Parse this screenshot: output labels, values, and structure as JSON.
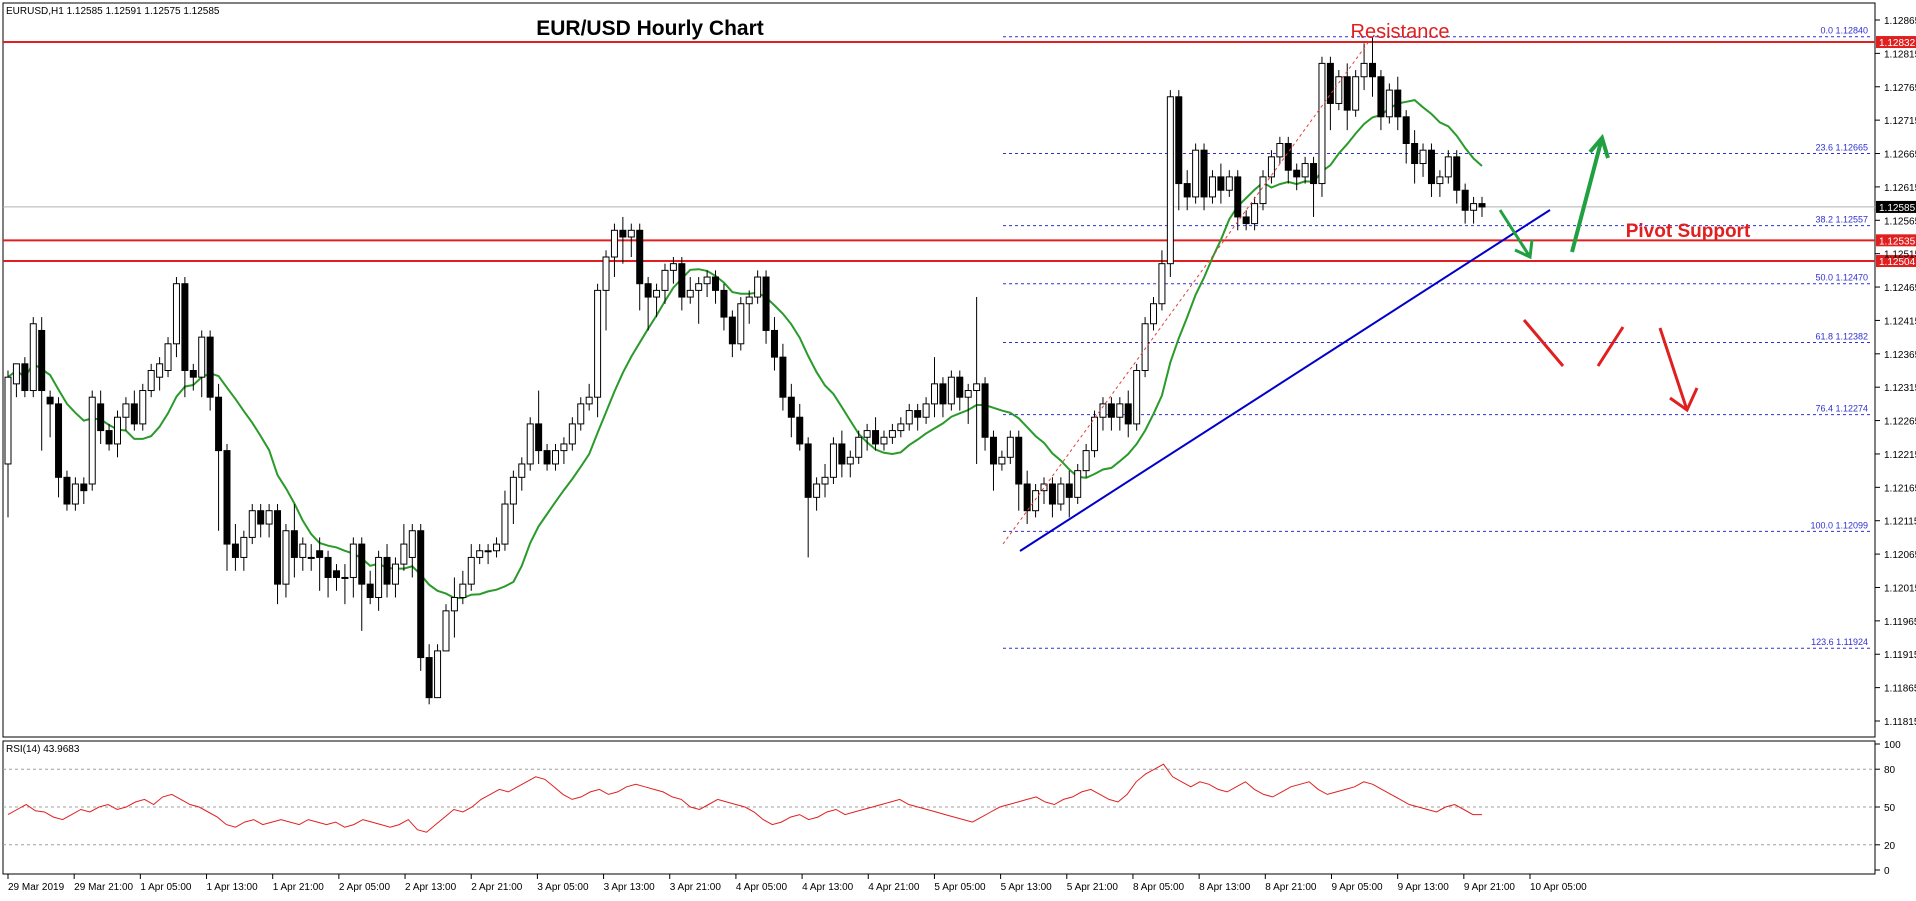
{
  "header": {
    "symbol_line": "EURUSD,H1  1.12585 1.12591 1.12575 1.12585"
  },
  "chart_data": {
    "type": "candlestick",
    "title": "EUR/USD Hourly Chart",
    "ylim": [
      1.1179,
      1.1289
    ],
    "y_ticks": [
      "1.12865",
      "1.12815",
      "1.12765",
      "1.12715",
      "1.12665",
      "1.12615",
      "1.12565",
      "1.12515",
      "1.12465",
      "1.12415",
      "1.12365",
      "1.12315",
      "1.12265",
      "1.12215",
      "1.12165",
      "1.12115",
      "1.12065",
      "1.12015",
      "1.11965",
      "1.11915",
      "1.11865",
      "1.11815"
    ],
    "x_ticks": [
      "29 Mar 2019",
      "29 Mar 21:00",
      "1 Apr 05:00",
      "1 Apr 13:00",
      "1 Apr 21:00",
      "2 Apr 05:00",
      "2 Apr 13:00",
      "2 Apr 21:00",
      "3 Apr 05:00",
      "3 Apr 13:00",
      "3 Apr 21:00",
      "4 Apr 05:00",
      "4 Apr 13:00",
      "4 Apr 21:00",
      "5 Apr 05:00",
      "5 Apr 13:00",
      "5 Apr 21:00",
      "8 Apr 05:00",
      "8 Apr 13:00",
      "8 Apr 21:00",
      "9 Apr 05:00",
      "9 Apr 13:00",
      "9 Apr 21:00",
      "10 Apr 05:00"
    ],
    "current_price": "1.12585",
    "price_labels": [
      "1.12832",
      "1.12535",
      "1.12504"
    ],
    "annotations": {
      "resistance": "Resistance",
      "pivot_support": "Pivot Support"
    },
    "fibonacci": [
      {
        "label": "0.0 1.12840",
        "price": 1.1284
      },
      {
        "label": "23.6 1.12665",
        "price": 1.12665
      },
      {
        "label": "38.2 1.12557",
        "price": 1.12557
      },
      {
        "label": "50.0 1.12470",
        "price": 1.1247
      },
      {
        "label": "61.8 1.12382",
        "price": 1.12382
      },
      {
        "label": "76.4 1.12274",
        "price": 1.12274
      },
      {
        "label": "100.0 1.12099",
        "price": 1.12099
      },
      {
        "label": "123.6 1.11924",
        "price": 1.11924
      }
    ],
    "horizontal_lines": [
      1.12832,
      1.12535,
      1.12504
    ],
    "candles": [
      [
        1.122,
        1.1234,
        1.1233,
        1.1212
      ],
      [
        1.1232,
        1.1235,
        1.1235,
        1.123
      ],
      [
        1.1235,
        1.1236,
        1.1231,
        1.123
      ],
      [
        1.1231,
        1.1242,
        1.1241,
        1.123
      ],
      [
        1.124,
        1.1242,
        1.1231,
        1.1222
      ],
      [
        1.123,
        1.1231,
        1.1229,
        1.1224
      ],
      [
        1.1229,
        1.123,
        1.1218,
        1.1215
      ],
      [
        1.1218,
        1.1219,
        1.1214,
        1.1213
      ],
      [
        1.1214,
        1.1218,
        1.1217,
        1.1213
      ],
      [
        1.1217,
        1.1218,
        1.1216,
        1.1214
      ],
      [
        1.1217,
        1.1231,
        1.123,
        1.1216
      ],
      [
        1.1229,
        1.1231,
        1.1225,
        1.1223
      ],
      [
        1.1225,
        1.1226,
        1.1223,
        1.1222
      ],
      [
        1.1223,
        1.1228,
        1.1227,
        1.1221
      ],
      [
        1.1227,
        1.123,
        1.1229,
        1.1225
      ],
      [
        1.1229,
        1.1231,
        1.1226,
        1.1225
      ],
      [
        1.1226,
        1.1232,
        1.1231,
        1.1225
      ],
      [
        1.1231,
        1.1235,
        1.1234,
        1.123
      ],
      [
        1.1233,
        1.1236,
        1.1235,
        1.1231
      ],
      [
        1.1234,
        1.1239,
        1.1238,
        1.1233
      ],
      [
        1.1238,
        1.1248,
        1.1247,
        1.1236
      ],
      [
        1.1247,
        1.1248,
        1.1234,
        1.123
      ],
      [
        1.1234,
        1.1235,
        1.1233,
        1.1231
      ],
      [
        1.1233,
        1.124,
        1.1239,
        1.123
      ],
      [
        1.1239,
        1.124,
        1.123,
        1.1228
      ],
      [
        1.123,
        1.1232,
        1.1222,
        1.121
      ],
      [
        1.1222,
        1.1223,
        1.1208,
        1.1204
      ],
      [
        1.1208,
        1.1211,
        1.1206,
        1.1204
      ],
      [
        1.1206,
        1.121,
        1.1209,
        1.1204
      ],
      [
        1.1209,
        1.1214,
        1.1213,
        1.1208
      ],
      [
        1.1213,
        1.1214,
        1.1211,
        1.1209
      ],
      [
        1.1211,
        1.1214,
        1.1213,
        1.1209
      ],
      [
        1.1213,
        1.1214,
        1.1202,
        1.1199
      ],
      [
        1.1202,
        1.1211,
        1.121,
        1.12
      ],
      [
        1.121,
        1.1214,
        1.1206,
        1.1203
      ],
      [
        1.1206,
        1.1209,
        1.1208,
        1.1204
      ],
      [
        1.1206,
        1.1208,
        1.1206,
        1.1204
      ],
      [
        1.1207,
        1.1209,
        1.1206,
        1.1201
      ],
      [
        1.1206,
        1.1207,
        1.1203,
        1.12
      ],
      [
        1.1204,
        1.1205,
        1.1203,
        1.1201
      ],
      [
        1.1203,
        1.1205,
        1.1203,
        1.1199
      ],
      [
        1.1203,
        1.1209,
        1.1208,
        1.12
      ],
      [
        1.1208,
        1.1209,
        1.1202,
        1.1195
      ],
      [
        1.1202,
        1.1204,
        1.12,
        1.1199
      ],
      [
        1.12,
        1.1207,
        1.1206,
        1.1198
      ],
      [
        1.1206,
        1.1208,
        1.1202,
        1.12
      ],
      [
        1.1202,
        1.1206,
        1.1205,
        1.12
      ],
      [
        1.1205,
        1.1211,
        1.1208,
        1.1204
      ],
      [
        1.1206,
        1.1211,
        1.121,
        1.1203
      ],
      [
        1.121,
        1.1211,
        1.1191,
        1.1189
      ],
      [
        1.1191,
        1.1193,
        1.1185,
        1.1184
      ],
      [
        1.1185,
        1.1193,
        1.1192,
        1.1185
      ],
      [
        1.1192,
        1.1199,
        1.1198,
        1.1192
      ],
      [
        1.1198,
        1.1203,
        1.12,
        1.1194
      ],
      [
        1.12,
        1.1204,
        1.1202,
        1.1199
      ],
      [
        1.1202,
        1.1208,
        1.1206,
        1.1201
      ],
      [
        1.1206,
        1.1208,
        1.1207,
        1.1205
      ],
      [
        1.1207,
        1.1208,
        1.1207,
        1.1205
      ],
      [
        1.1207,
        1.1209,
        1.1208,
        1.1206
      ],
      [
        1.1208,
        1.1216,
        1.1214,
        1.1207
      ],
      [
        1.1214,
        1.1219,
        1.1218,
        1.1211
      ],
      [
        1.1218,
        1.1221,
        1.122,
        1.1216
      ],
      [
        1.122,
        1.1227,
        1.1226,
        1.1219
      ],
      [
        1.1226,
        1.1231,
        1.1222,
        1.122
      ],
      [
        1.1222,
        1.1223,
        1.122,
        1.1219
      ],
      [
        1.122,
        1.1223,
        1.1222,
        1.1219
      ],
      [
        1.1222,
        1.1224,
        1.1223,
        1.122
      ],
      [
        1.1223,
        1.1227,
        1.1226,
        1.1222
      ],
      [
        1.1226,
        1.123,
        1.1229,
        1.1225
      ],
      [
        1.1229,
        1.1232,
        1.123,
        1.1228
      ],
      [
        1.123,
        1.1247,
        1.1246,
        1.1227
      ],
      [
        1.1246,
        1.1252,
        1.1251,
        1.124
      ],
      [
        1.1251,
        1.1256,
        1.1255,
        1.1248
      ],
      [
        1.1255,
        1.1257,
        1.1254,
        1.125
      ],
      [
        1.1254,
        1.1256,
        1.1255,
        1.1251
      ],
      [
        1.1255,
        1.1256,
        1.1247,
        1.1243
      ],
      [
        1.1247,
        1.1248,
        1.1245,
        1.124
      ],
      [
        1.1245,
        1.1247,
        1.1246,
        1.1242
      ],
      [
        1.1246,
        1.125,
        1.1249,
        1.1244
      ],
      [
        1.1249,
        1.1251,
        1.125,
        1.1247
      ],
      [
        1.125,
        1.1251,
        1.1245,
        1.1243
      ],
      [
        1.1245,
        1.1248,
        1.1246,
        1.1244
      ],
      [
        1.1246,
        1.1248,
        1.1247,
        1.1241
      ],
      [
        1.1247,
        1.1249,
        1.1248,
        1.1245
      ],
      [
        1.1248,
        1.1249,
        1.1246,
        1.1244
      ],
      [
        1.1246,
        1.1247,
        1.1242,
        1.124
      ],
      [
        1.1242,
        1.1243,
        1.1238,
        1.1236
      ],
      [
        1.1238,
        1.1245,
        1.1244,
        1.1237
      ],
      [
        1.1244,
        1.1246,
        1.1245,
        1.1241
      ],
      [
        1.1245,
        1.1249,
        1.1248,
        1.1244
      ],
      [
        1.1248,
        1.1249,
        1.124,
        1.1238
      ],
      [
        1.124,
        1.1242,
        1.1236,
        1.1234
      ],
      [
        1.1236,
        1.1238,
        1.123,
        1.1228
      ],
      [
        1.123,
        1.1232,
        1.1227,
        1.1224
      ],
      [
        1.1227,
        1.1229,
        1.1223,
        1.1222
      ],
      [
        1.1223,
        1.1224,
        1.1215,
        1.1206
      ],
      [
        1.1215,
        1.1218,
        1.1217,
        1.1213
      ],
      [
        1.1217,
        1.122,
        1.1218,
        1.1215
      ],
      [
        1.1218,
        1.1224,
        1.1223,
        1.1217
      ],
      [
        1.1223,
        1.1225,
        1.122,
        1.1218
      ],
      [
        1.122,
        1.1222,
        1.1221,
        1.1218
      ],
      [
        1.1221,
        1.1225,
        1.1224,
        1.122
      ],
      [
        1.1224,
        1.1226,
        1.1225,
        1.1222
      ],
      [
        1.1225,
        1.1227,
        1.1223,
        1.1222
      ],
      [
        1.1223,
        1.1225,
        1.1224,
        1.1222
      ],
      [
        1.1224,
        1.1226,
        1.1225,
        1.1223
      ],
      [
        1.1225,
        1.1227,
        1.1226,
        1.1224
      ],
      [
        1.1226,
        1.1229,
        1.1228,
        1.1225
      ],
      [
        1.1228,
        1.1229,
        1.1227,
        1.1225
      ],
      [
        1.1227,
        1.123,
        1.1229,
        1.1226
      ],
      [
        1.1229,
        1.1236,
        1.1232,
        1.1227
      ],
      [
        1.1232,
        1.1233,
        1.1229,
        1.1227
      ],
      [
        1.1229,
        1.1234,
        1.1233,
        1.1228
      ],
      [
        1.1233,
        1.1234,
        1.123,
        1.1228
      ],
      [
        1.123,
        1.1232,
        1.1231,
        1.1226
      ],
      [
        1.1231,
        1.1245,
        1.1232,
        1.122
      ],
      [
        1.1232,
        1.1233,
        1.1224,
        1.1222
      ],
      [
        1.1224,
        1.1225,
        1.122,
        1.1216
      ],
      [
        1.122,
        1.1222,
        1.1221,
        1.1219
      ],
      [
        1.1221,
        1.1225,
        1.1224,
        1.122
      ],
      [
        1.1224,
        1.1225,
        1.1217,
        1.1213
      ],
      [
        1.1217,
        1.1219,
        1.1213,
        1.1211
      ],
      [
        1.1213,
        1.1217,
        1.1216,
        1.1212
      ],
      [
        1.1216,
        1.1218,
        1.1217,
        1.1214
      ],
      [
        1.1217,
        1.1218,
        1.1214,
        1.1212
      ],
      [
        1.1214,
        1.1218,
        1.1217,
        1.1213
      ],
      [
        1.1217,
        1.1219,
        1.1215,
        1.1212
      ],
      [
        1.1215,
        1.122,
        1.1219,
        1.1214
      ],
      [
        1.1219,
        1.1223,
        1.1222,
        1.1218
      ],
      [
        1.1222,
        1.1228,
        1.1227,
        1.1221
      ],
      [
        1.1227,
        1.123,
        1.1229,
        1.1225
      ],
      [
        1.1229,
        1.123,
        1.1227,
        1.1225
      ],
      [
        1.1227,
        1.123,
        1.1229,
        1.1225
      ],
      [
        1.1229,
        1.1231,
        1.1226,
        1.1224
      ],
      [
        1.1226,
        1.1235,
        1.1234,
        1.1225
      ],
      [
        1.1234,
        1.1242,
        1.1241,
        1.1233
      ],
      [
        1.1241,
        1.1245,
        1.1244,
        1.124
      ],
      [
        1.1244,
        1.1252,
        1.125,
        1.1243
      ],
      [
        1.125,
        1.1276,
        1.1275,
        1.1248
      ],
      [
        1.1275,
        1.1276,
        1.1262,
        1.1258
      ],
      [
        1.1262,
        1.1264,
        1.126,
        1.1258
      ],
      [
        1.126,
        1.1268,
        1.1267,
        1.1259
      ],
      [
        1.1267,
        1.1268,
        1.126,
        1.1258
      ],
      [
        1.126,
        1.1264,
        1.1263,
        1.1259
      ],
      [
        1.1263,
        1.1265,
        1.1261,
        1.1259
      ],
      [
        1.1261,
        1.1264,
        1.1263,
        1.126
      ],
      [
        1.1263,
        1.1264,
        1.1257,
        1.1255
      ],
      [
        1.1257,
        1.1258,
        1.1256,
        1.1255
      ],
      [
        1.1256,
        1.126,
        1.1259,
        1.1255
      ],
      [
        1.1259,
        1.1264,
        1.1263,
        1.1258
      ],
      [
        1.1263,
        1.1267,
        1.1266,
        1.1262
      ],
      [
        1.1266,
        1.1269,
        1.1268,
        1.1265
      ],
      [
        1.1268,
        1.1269,
        1.1264,
        1.1262
      ],
      [
        1.1264,
        1.1265,
        1.1263,
        1.1261
      ],
      [
        1.1263,
        1.1266,
        1.1265,
        1.1262
      ],
      [
        1.1265,
        1.1266,
        1.1262,
        1.1257
      ],
      [
        1.1262,
        1.1281,
        1.128,
        1.126
      ],
      [
        1.128,
        1.1281,
        1.1274,
        1.127
      ],
      [
        1.1274,
        1.1279,
        1.1278,
        1.1273
      ],
      [
        1.1278,
        1.128,
        1.1273,
        1.127
      ],
      [
        1.1273,
        1.1279,
        1.1278,
        1.1272
      ],
      [
        1.1278,
        1.1283,
        1.128,
        1.1276
      ],
      [
        1.128,
        1.1284,
        1.1278,
        1.1275
      ],
      [
        1.1278,
        1.1279,
        1.1272,
        1.127
      ],
      [
        1.1272,
        1.1277,
        1.1276,
        1.1271
      ],
      [
        1.1276,
        1.1278,
        1.1272,
        1.127
      ],
      [
        1.1272,
        1.1273,
        1.1268,
        1.1265
      ],
      [
        1.1268,
        1.127,
        1.1265,
        1.1262
      ],
      [
        1.1265,
        1.1268,
        1.1267,
        1.1263
      ],
      [
        1.1267,
        1.1268,
        1.1262,
        1.126
      ],
      [
        1.1262,
        1.1264,
        1.1263,
        1.126
      ],
      [
        1.1263,
        1.1267,
        1.1266,
        1.1262
      ],
      [
        1.1266,
        1.1267,
        1.1261,
        1.1259
      ],
      [
        1.1261,
        1.1262,
        1.1258,
        1.1256
      ],
      [
        1.1258,
        1.126,
        1.1259,
        1.1256
      ],
      [
        1.1259,
        1.126,
        1.12585,
        1.1257
      ]
    ],
    "ma_period": "green moving average",
    "rsi": {
      "label": "RSI(14) 43.9683",
      "ticks": [
        "100",
        "80",
        "50",
        "20",
        "0"
      ],
      "levels": [
        80,
        50,
        20
      ],
      "values": [
        44,
        48,
        52,
        47,
        46,
        42,
        40,
        44,
        48,
        46,
        50,
        52,
        48,
        50,
        54,
        56,
        52,
        58,
        60,
        56,
        52,
        50,
        46,
        42,
        36,
        34,
        38,
        40,
        36,
        38,
        40,
        38,
        36,
        40,
        38,
        36,
        38,
        34,
        36,
        40,
        38,
        36,
        34,
        36,
        40,
        32,
        30,
        36,
        42,
        48,
        46,
        50,
        56,
        60,
        64,
        62,
        66,
        70,
        74,
        72,
        66,
        60,
        56,
        58,
        62,
        64,
        60,
        62,
        66,
        68,
        66,
        64,
        62,
        58,
        56,
        50,
        48,
        52,
        56,
        54,
        52,
        50,
        46,
        40,
        36,
        38,
        42,
        44,
        40,
        42,
        46,
        48,
        44,
        46,
        48,
        50,
        52,
        54,
        56,
        52,
        50,
        48,
        46,
        44,
        42,
        40,
        38,
        42,
        46,
        50,
        52,
        54,
        56,
        58,
        54,
        52,
        56,
        58,
        62,
        64,
        60,
        56,
        54,
        60,
        70,
        76,
        80,
        84,
        74,
        70,
        66,
        70,
        68,
        64,
        62,
        66,
        70,
        64,
        60,
        58,
        62,
        66,
        68,
        70,
        64,
        60,
        62,
        64,
        66,
        70,
        68,
        64,
        60,
        56,
        52,
        50,
        48,
        46,
        50,
        52,
        48,
        44,
        43.9683
      ]
    }
  }
}
